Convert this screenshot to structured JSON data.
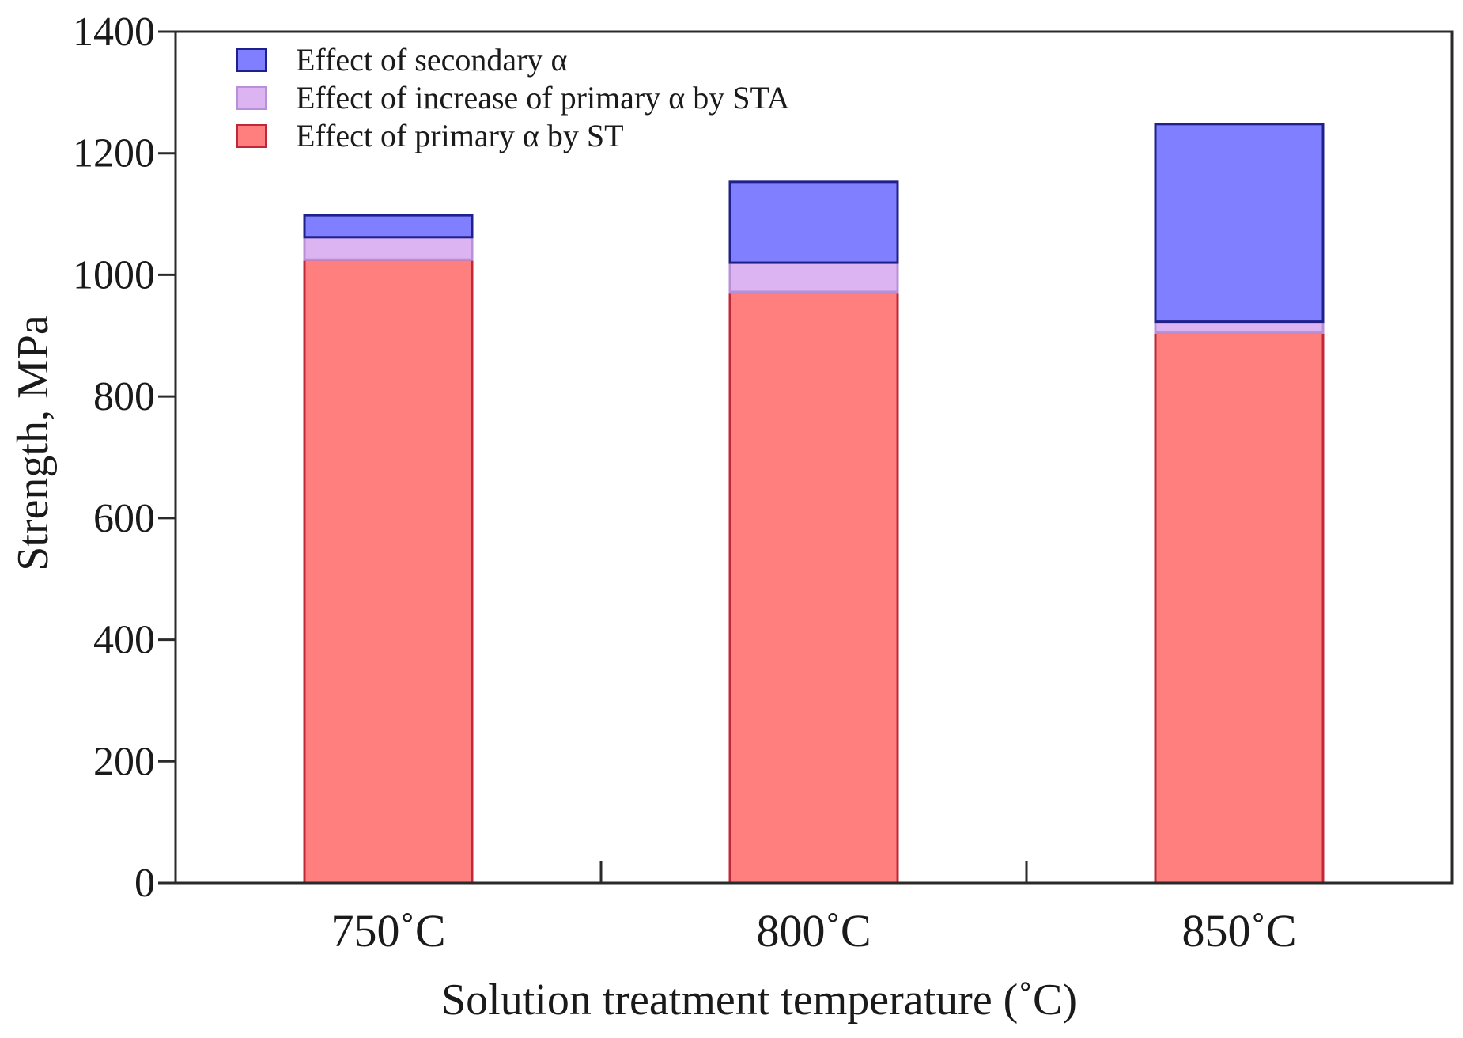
{
  "chart_data": {
    "type": "bar",
    "stacked": true,
    "title": "",
    "xlabel": "Solution treatment temperature (˚C)",
    "ylabel": "Strength, MPa",
    "ylim": [
      0,
      1400
    ],
    "yticks": [
      0,
      200,
      400,
      600,
      800,
      1000,
      1200,
      1400
    ],
    "ytick_labels": [
      "0",
      "200",
      "400",
      "600",
      "800",
      "1000",
      "1200",
      "1400"
    ],
    "categories": [
      "750˚C",
      "800˚C",
      "850˚C"
    ],
    "series": [
      {
        "name": "Effect of primary α by ST",
        "values": [
          1025,
          972,
          905
        ],
        "fill": "#ff7f7f",
        "stroke": "#c0283a"
      },
      {
        "name": "Effect of increase of primary α by STA",
        "values": [
          37,
          48,
          18
        ],
        "fill": "#dcb4f2",
        "stroke": "#b890d8"
      },
      {
        "name": "Effect of secondary α",
        "values": [
          36,
          133,
          325
        ],
        "fill": "#7f7fff",
        "stroke": "#20208a"
      }
    ],
    "legend_order": [
      2,
      1,
      0
    ],
    "legend_position": "top-left",
    "grid": false
  }
}
